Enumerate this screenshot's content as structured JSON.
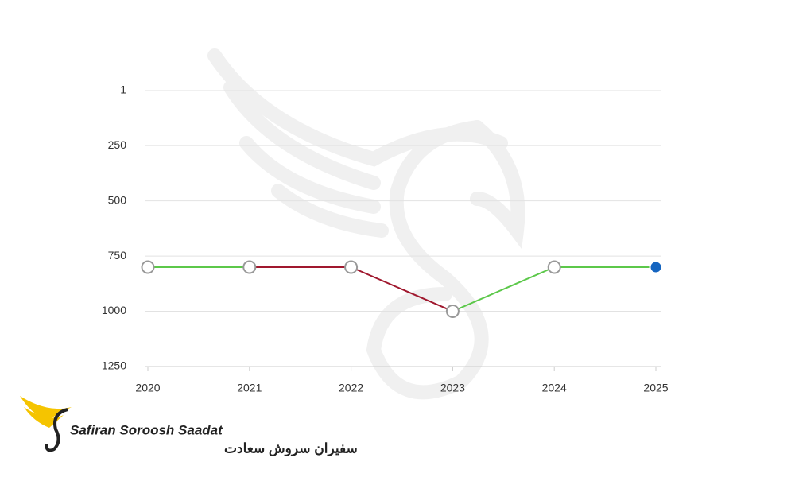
{
  "chart_data": {
    "type": "line",
    "categories": [
      "2020",
      "2021",
      "2022",
      "2023",
      "2024",
      "2025"
    ],
    "values": [
      800,
      800,
      800,
      1000,
      800,
      800
    ],
    "segment_colors": [
      "#5cc84a",
      "#a0182e",
      "#a0182e",
      "#5cc84a",
      "#5cc84a"
    ],
    "marker_fills": [
      "#ffffff",
      "#ffffff",
      "#ffffff",
      "#ffffff",
      "#ffffff",
      "#1565c0"
    ],
    "ylim": [
      1,
      1250
    ],
    "y_reversed": true,
    "yticks": [
      1,
      250,
      500,
      750,
      1000,
      1250
    ],
    "grid": true
  },
  "logo": {
    "name": "Safiran Soroosh Saadat",
    "name_fa": "سفیران سروش سعادت"
  }
}
